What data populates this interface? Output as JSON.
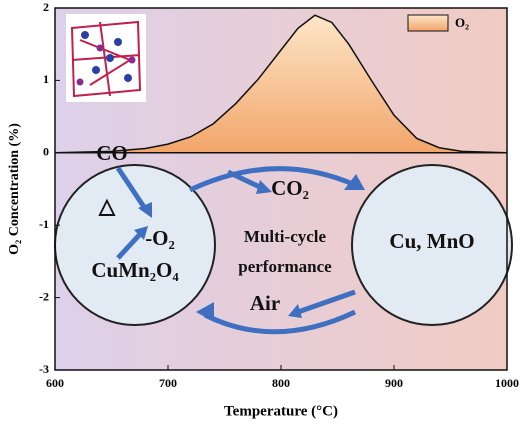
{
  "chart_data": {
    "type": "area",
    "xlabel": "Temperature (°C)",
    "ylabel": "O₂ Concentration (%)",
    "x": [
      600,
      650,
      680,
      700,
      720,
      740,
      760,
      780,
      800,
      815,
      830,
      845,
      860,
      880,
      900,
      920,
      940,
      960,
      1000
    ],
    "series": [
      {
        "name": "O₂",
        "color": "#f4a96a",
        "values": [
          0,
          0.02,
          0.06,
          0.12,
          0.22,
          0.4,
          0.68,
          1.02,
          1.42,
          1.72,
          1.9,
          1.8,
          1.5,
          1.0,
          0.52,
          0.2,
          0.07,
          0.02,
          0
        ]
      }
    ],
    "xlim": [
      600,
      1000
    ],
    "xticks": [
      600,
      700,
      800,
      900,
      1000
    ],
    "ylim": [
      -3,
      2
    ],
    "yticks": [
      -3,
      -2,
      -1,
      0,
      1,
      2
    ],
    "legend": "upper right",
    "annotations": [
      "CO",
      "△",
      "-O₂",
      "CuMn₂O₄",
      "CO₂",
      "Multi-cycle",
      "performance",
      "Cu, MnO",
      "Air"
    ]
  }
}
